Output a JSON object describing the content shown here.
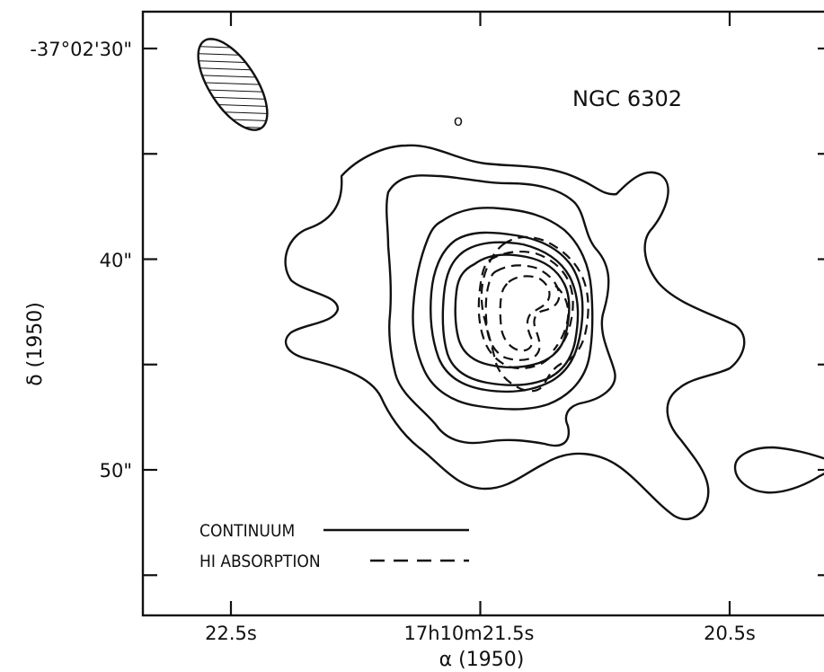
{
  "chart_data": {
    "type": "contour",
    "title": "NGC 6302",
    "xlabel": "α (1950)",
    "ylabel": "δ (1950)",
    "x_ticks": [
      {
        "value": 22.5,
        "label": "22.5s"
      },
      {
        "value": 22.0,
        "label": ""
      },
      {
        "value": 21.5,
        "label": "17h10m21.5s"
      },
      {
        "value": 21.0,
        "label": ""
      },
      {
        "value": 20.5,
        "label": "20.5s"
      }
    ],
    "y_ticks": [
      {
        "value": 30,
        "label": "-37°02'30\""
      },
      {
        "value": 35,
        "label": ""
      },
      {
        "value": 40,
        "label": "40\""
      },
      {
        "value": 45,
        "label": ""
      },
      {
        "value": 50,
        "label": "50\""
      },
      {
        "value": 55,
        "label": ""
      }
    ],
    "marker_label": "o",
    "legend": [
      {
        "label": "CONTINUUM",
        "style": "solid"
      },
      {
        "label": "HI ABSORPTION",
        "style": "dashed"
      }
    ],
    "beam": "hatched-ellipse",
    "line_color": "#111111"
  }
}
